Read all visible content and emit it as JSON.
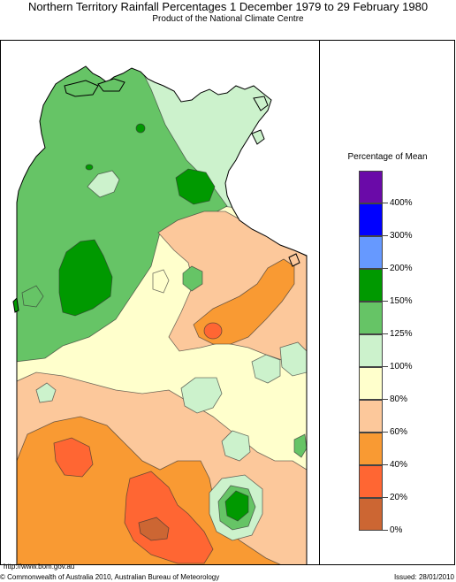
{
  "title": "Northern Territory Rainfall Percentages 1 December 1979 to 29 February 1980",
  "subtitle": "Product of the National Climate Centre",
  "legend": {
    "title": "Percentage of Mean",
    "bands": [
      {
        "color": "#6a0aa8",
        "label": "400%"
      },
      {
        "color": "#0000ff",
        "label": "300%"
      },
      {
        "color": "#6699ff",
        "label": "200%"
      },
      {
        "color": "#009900",
        "label": "150%"
      },
      {
        "color": "#66c466",
        "label": "125%"
      },
      {
        "color": "#ccf2cc",
        "label": "100%"
      },
      {
        "color": "#ffffcc",
        "label": "80%"
      },
      {
        "color": "#fcc89b",
        "label": "60%"
      },
      {
        "color": "#f99a33",
        "label": "40%"
      },
      {
        "color": "#ff6633",
        "label": "20%"
      },
      {
        "color": "#cc6633",
        "label": "0%"
      }
    ]
  },
  "footer": {
    "url": "http://www.bom.gov.au",
    "copyright": "© Commonwealth of Australia 2010, Australian Bureau of Meteorology",
    "issued": "Issued: 28/01/2010"
  }
}
